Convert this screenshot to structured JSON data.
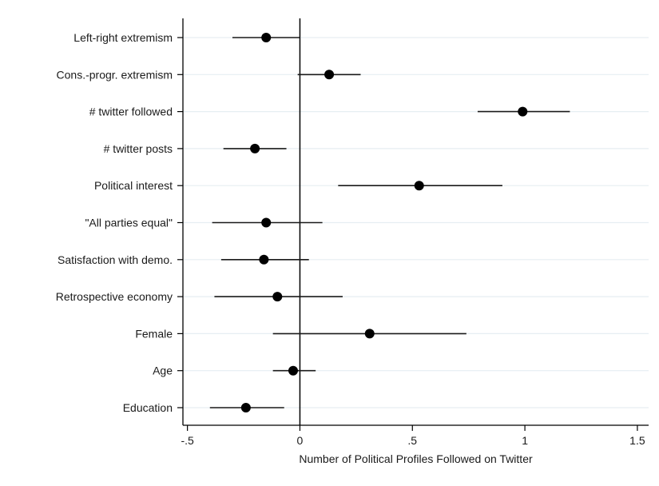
{
  "chart_data": {
    "type": "scatter",
    "subtype": "coefficient plot with horizontal confidence intervals",
    "title": "",
    "xlabel": "Number of Political Profiles Followed on Twitter",
    "ylabel": "",
    "xlim": [
      -0.52,
      1.55
    ],
    "xticks": [
      -0.5,
      0,
      0.5,
      1,
      1.5
    ],
    "xtick_labels": [
      "-.5",
      "0",
      ".5",
      "1",
      "1.5"
    ],
    "reference_line_x": 0,
    "grid": "horizontal lines at each category",
    "categories": [
      "Left-right extremism",
      "Cons.-progr. extremism",
      "# twitter followed",
      "# twitter posts",
      "Political interest",
      "\"All parties equal\"",
      "Satisfaction with demo.",
      "Retrospective economy",
      "Female",
      "Age",
      "Education"
    ],
    "series": [
      {
        "estimates": [
          -0.15,
          0.13,
          0.99,
          -0.2,
          0.53,
          -0.15,
          -0.16,
          -0.1,
          0.31,
          -0.03,
          -0.24
        ],
        "ci_low": [
          -0.3,
          -0.01,
          0.79,
          -0.34,
          0.17,
          -0.39,
          -0.35,
          -0.38,
          -0.12,
          -0.12,
          -0.4
        ],
        "ci_high": [
          0.0,
          0.27,
          1.2,
          -0.06,
          0.9,
          0.1,
          0.04,
          0.19,
          0.74,
          0.07,
          -0.07
        ]
      }
    ],
    "colors": {
      "marker": "#000000",
      "ci_line": "#1a1a1a",
      "gridline": "#e6eef2",
      "reference_line": "#000000",
      "axis": "#000000"
    }
  }
}
